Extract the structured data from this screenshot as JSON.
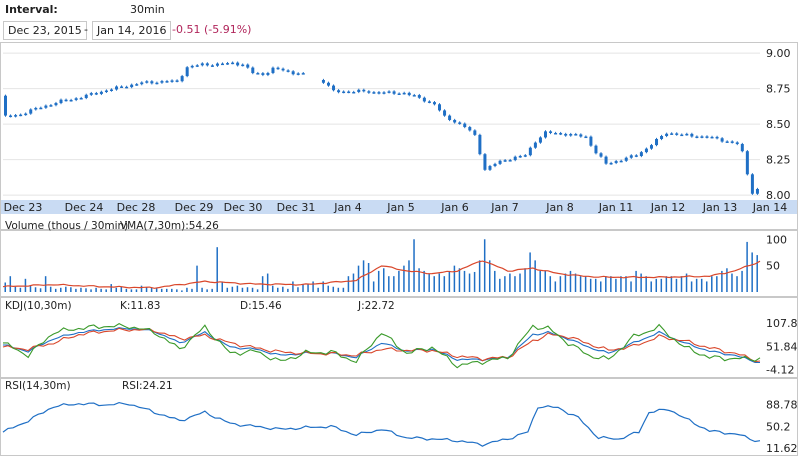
{
  "header": {
    "interval_label": "Interval:",
    "interval_value": "30min",
    "start_date": "Dec 23, 2015",
    "separator": "-",
    "end_date": "Jan 14, 2016",
    "change": "-0.51 (-5.91%)"
  },
  "colors": {
    "price": "#1f6fc5",
    "volume_ma": "#d9472b",
    "kdj_k": "#1f6fc5",
    "kdj_d": "#d9472b",
    "kdj_j": "#3a9a2a",
    "rsi": "#1f6fc5",
    "axis_band": "#c9dbf3",
    "change_negative": "#b0245a"
  },
  "chart_data": [
    {
      "type": "line",
      "panel": "price",
      "y_ticks": [
        "9.00",
        "8.75",
        "8.50",
        "8.25",
        "8.00"
      ],
      "ylim": [
        7.98,
        9.05
      ],
      "x_labels": [
        "Dec 23",
        "Dec 24",
        "Dec 28",
        "Dec 29",
        "Dec 30",
        "Dec 31",
        "Jan 4",
        "Jan 5",
        "Jan 6",
        "Jan 7",
        "Jan 8",
        "Jan 11",
        "Jan 12",
        "Jan 13",
        "Jan 14"
      ],
      "anchors": [
        [
          0,
          8.7
        ],
        [
          1,
          8.55
        ],
        [
          4,
          8.57
        ],
        [
          8,
          8.62
        ],
        [
          12,
          8.66
        ],
        [
          16,
          8.69
        ],
        [
          20,
          8.73
        ],
        [
          25,
          8.77
        ],
        [
          28,
          8.79
        ],
        [
          32,
          8.8
        ],
        [
          35,
          8.8
        ],
        [
          37,
          8.9
        ],
        [
          40,
          8.92
        ],
        [
          43,
          8.92
        ],
        [
          46,
          8.93
        ],
        [
          48,
          8.92
        ],
        [
          50,
          8.86
        ],
        [
          52,
          8.85
        ],
        [
          54,
          8.89
        ],
        [
          56,
          8.88
        ],
        [
          58,
          8.86
        ],
        [
          59,
          8.86
        ],
        [
          64,
          8.8
        ],
        [
          66,
          8.73
        ],
        [
          68,
          8.73
        ],
        [
          72,
          8.73
        ],
        [
          76,
          8.72
        ],
        [
          80,
          8.72
        ],
        [
          84,
          8.67
        ],
        [
          86,
          8.64
        ],
        [
          88,
          8.55
        ],
        [
          90,
          8.52
        ],
        [
          92,
          8.48
        ],
        [
          94,
          8.42
        ],
        [
          96,
          8.18
        ],
        [
          98,
          8.22
        ],
        [
          100,
          8.25
        ],
        [
          104,
          8.28
        ],
        [
          106,
          8.38
        ],
        [
          108,
          8.44
        ],
        [
          112,
          8.43
        ],
        [
          116,
          8.41
        ],
        [
          118,
          8.3
        ],
        [
          120,
          8.22
        ],
        [
          122,
          8.24
        ],
        [
          126,
          8.28
        ],
        [
          128,
          8.33
        ],
        [
          132,
          8.44
        ],
        [
          136,
          8.42
        ],
        [
          140,
          8.41
        ],
        [
          144,
          8.38
        ],
        [
          146,
          8.36
        ],
        [
          147,
          8.3
        ],
        [
          148,
          8.15
        ],
        [
          149,
          8.02
        ],
        [
          150,
          8.04
        ]
      ]
    },
    {
      "type": "bar",
      "panel": "volume",
      "title": "Volume (thous / 30min)",
      "ma_label": "VMA(7,30m):54.26",
      "y_ticks": [
        "100",
        "50"
      ],
      "ylim": [
        0,
        110
      ],
      "volumes": [
        18,
        30,
        10,
        8,
        25,
        12,
        9,
        7,
        30,
        10,
        6,
        8,
        10,
        9,
        6,
        8,
        7,
        5,
        8,
        6,
        5,
        15,
        8,
        10,
        6,
        5,
        5,
        12,
        9,
        8,
        7,
        6,
        6,
        6,
        5,
        3,
        8,
        6,
        50,
        8,
        5,
        6,
        85,
        20,
        8,
        10,
        12,
        8,
        9,
        8,
        5,
        30,
        35,
        12,
        8,
        10,
        6,
        20,
        9,
        15,
        15,
        20,
        8,
        20,
        12,
        10,
        8,
        8,
        30,
        35,
        50,
        60,
        55,
        20,
        40,
        45,
        30,
        30,
        40,
        50,
        60,
        100,
        45,
        40,
        35,
        30,
        35,
        30,
        40,
        50,
        45,
        40,
        35,
        38,
        60,
        100,
        60,
        40,
        25,
        30,
        35,
        30,
        35,
        45,
        75,
        60,
        40,
        40,
        30,
        20,
        30,
        35,
        40,
        35,
        30,
        30,
        25,
        25,
        20,
        30,
        30,
        25,
        30,
        30,
        20,
        40,
        35,
        30,
        20,
        25,
        25,
        30,
        30,
        25,
        30,
        35,
        20,
        25,
        25,
        20,
        30,
        30,
        40,
        45,
        35,
        30,
        40,
        95,
        75,
        70
      ],
      "vma_anchors": [
        [
          0,
          10
        ],
        [
          10,
          14
        ],
        [
          20,
          10
        ],
        [
          30,
          8
        ],
        [
          40,
          20
        ],
        [
          50,
          15
        ],
        [
          60,
          14
        ],
        [
          70,
          22
        ],
        [
          75,
          50
        ],
        [
          80,
          40
        ],
        [
          85,
          35
        ],
        [
          90,
          40
        ],
        [
          95,
          60
        ],
        [
          100,
          40
        ],
        [
          105,
          45
        ],
        [
          110,
          35
        ],
        [
          115,
          30
        ],
        [
          120,
          28
        ],
        [
          130,
          28
        ],
        [
          140,
          30
        ],
        [
          145,
          40
        ],
        [
          150,
          58
        ]
      ]
    },
    {
      "type": "line",
      "panel": "kdj",
      "title": "KDJ(10,30m)",
      "y_ticks": [
        "107.8",
        "51.84",
        "-4.12"
      ],
      "ylim": [
        -10,
        115
      ],
      "series": [
        {
          "name": "K:11.83",
          "anchors": [
            [
              0,
              55
            ],
            [
              5,
              40
            ],
            [
              10,
              70
            ],
            [
              15,
              85
            ],
            [
              20,
              92
            ],
            [
              25,
              95
            ],
            [
              30,
              88
            ],
            [
              35,
              60
            ],
            [
              40,
              85
            ],
            [
              45,
              50
            ],
            [
              50,
              45
            ],
            [
              55,
              30
            ],
            [
              60,
              35
            ],
            [
              65,
              35
            ],
            [
              70,
              25
            ],
            [
              75,
              60
            ],
            [
              80,
              40
            ],
            [
              85,
              45
            ],
            [
              90,
              20
            ],
            [
              95,
              20
            ],
            [
              100,
              25
            ],
            [
              105,
              80
            ],
            [
              108,
              85
            ],
            [
              112,
              70
            ],
            [
              116,
              50
            ],
            [
              120,
              35
            ],
            [
              125,
              60
            ],
            [
              130,
              85
            ],
            [
              135,
              60
            ],
            [
              140,
              40
            ],
            [
              145,
              30
            ],
            [
              150,
              12
            ]
          ]
        },
        {
          "name": "D:15.46",
          "anchors": [
            [
              0,
              50
            ],
            [
              5,
              45
            ],
            [
              10,
              60
            ],
            [
              15,
              80
            ],
            [
              20,
              88
            ],
            [
              25,
              92
            ],
            [
              30,
              90
            ],
            [
              35,
              70
            ],
            [
              40,
              78
            ],
            [
              45,
              60
            ],
            [
              50,
              48
            ],
            [
              55,
              38
            ],
            [
              60,
              35
            ],
            [
              65,
              34
            ],
            [
              70,
              30
            ],
            [
              75,
              45
            ],
            [
              80,
              42
            ],
            [
              85,
              42
            ],
            [
              90,
              28
            ],
            [
              95,
              22
            ],
            [
              100,
              25
            ],
            [
              105,
              65
            ],
            [
              108,
              80
            ],
            [
              112,
              75
            ],
            [
              116,
              58
            ],
            [
              120,
              42
            ],
            [
              125,
              52
            ],
            [
              130,
              75
            ],
            [
              135,
              65
            ],
            [
              140,
              48
            ],
            [
              145,
              35
            ],
            [
              150,
              15
            ]
          ]
        },
        {
          "name": "J:22.72",
          "anchors": [
            [
              0,
              60
            ],
            [
              5,
              30
            ],
            [
              10,
              85
            ],
            [
              15,
              95
            ],
            [
              20,
              100
            ],
            [
              25,
              100
            ],
            [
              30,
              86
            ],
            [
              35,
              45
            ],
            [
              40,
              98
            ],
            [
              45,
              35
            ],
            [
              50,
              40
            ],
            [
              55,
              15
            ],
            [
              60,
              36
            ],
            [
              65,
              38
            ],
            [
              70,
              15
            ],
            [
              75,
              85
            ],
            [
              80,
              35
            ],
            [
              85,
              50
            ],
            [
              90,
              5
            ],
            [
              95,
              15
            ],
            [
              100,
              24
            ],
            [
              105,
              100
            ],
            [
              108,
              95
            ],
            [
              112,
              60
            ],
            [
              116,
              30
            ],
            [
              120,
              20
            ],
            [
              125,
              75
            ],
            [
              130,
              98
            ],
            [
              135,
              50
            ],
            [
              140,
              25
            ],
            [
              145,
              22
            ],
            [
              150,
              22
            ]
          ]
        }
      ]
    },
    {
      "type": "line",
      "panel": "rsi",
      "title": "RSI(14,30m)",
      "value_label": "RSI:24.21",
      "y_ticks": [
        "88.78",
        "50.2",
        "11.62"
      ],
      "ylim": [
        5,
        100
      ],
      "anchors": [
        [
          0,
          40
        ],
        [
          5,
          60
        ],
        [
          10,
          85
        ],
        [
          15,
          90
        ],
        [
          20,
          88
        ],
        [
          25,
          90
        ],
        [
          30,
          75
        ],
        [
          35,
          60
        ],
        [
          40,
          75
        ],
        [
          45,
          55
        ],
        [
          50,
          50
        ],
        [
          55,
          45
        ],
        [
          60,
          48
        ],
        [
          65,
          50
        ],
        [
          70,
          35
        ],
        [
          75,
          45
        ],
        [
          80,
          30
        ],
        [
          85,
          28
        ],
        [
          90,
          25
        ],
        [
          95,
          18
        ],
        [
          100,
          28
        ],
        [
          104,
          40
        ],
        [
          106,
          85
        ],
        [
          110,
          83
        ],
        [
          114,
          65
        ],
        [
          118,
          30
        ],
        [
          122,
          28
        ],
        [
          126,
          40
        ],
        [
          128,
          75
        ],
        [
          132,
          80
        ],
        [
          136,
          60
        ],
        [
          140,
          42
        ],
        [
          144,
          38
        ],
        [
          146,
          35
        ],
        [
          148,
          28
        ],
        [
          150,
          24
        ]
      ]
    }
  ]
}
